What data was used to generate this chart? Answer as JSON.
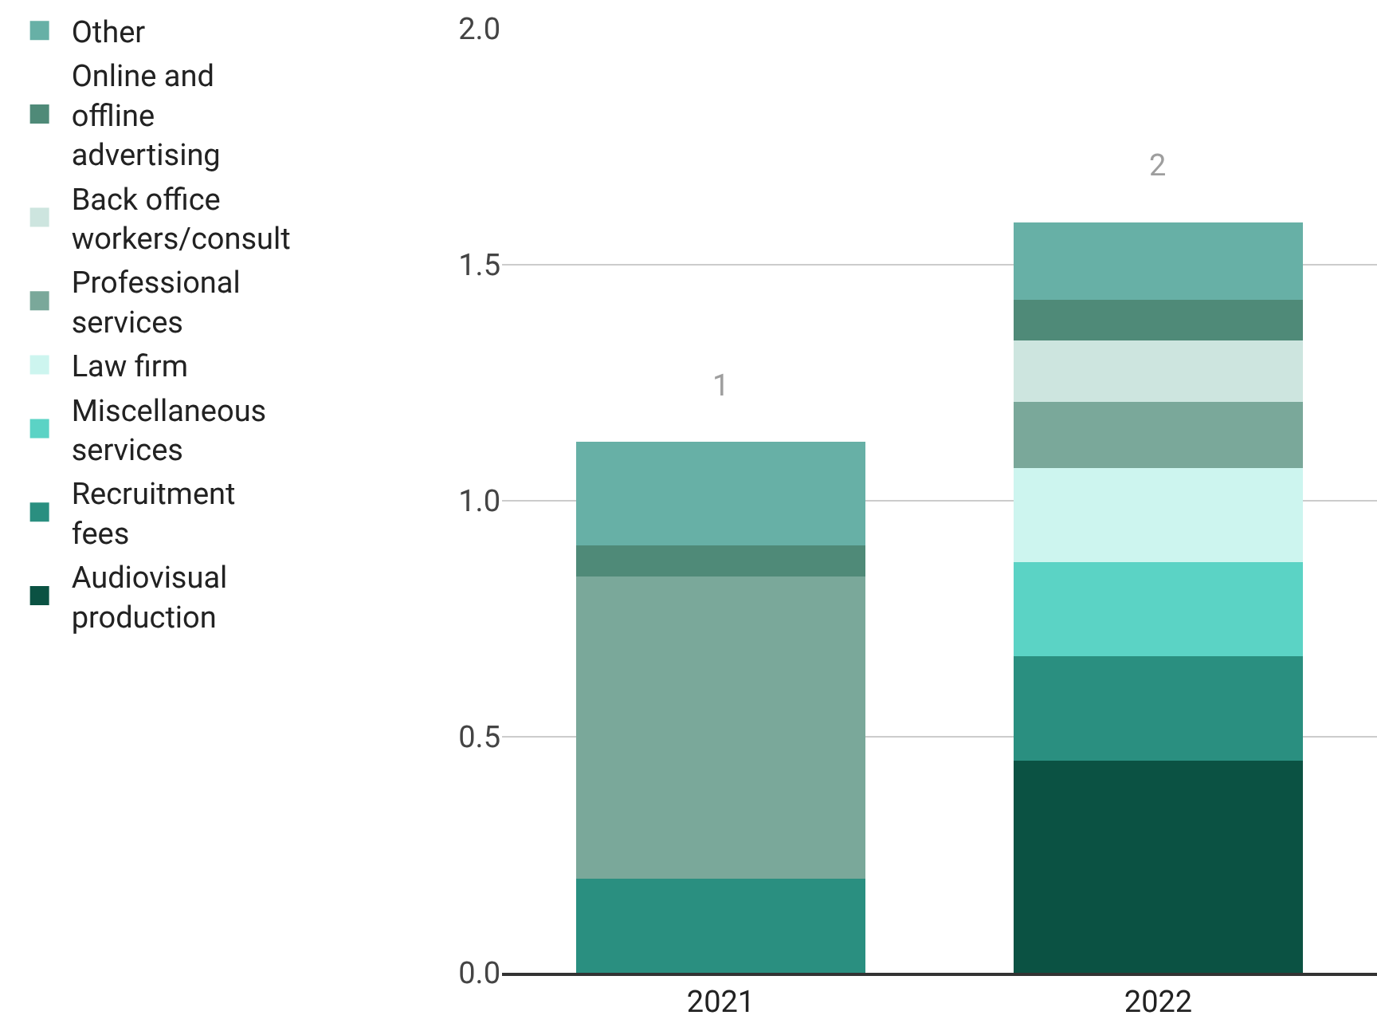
{
  "chart_data": {
    "type": "bar",
    "stacked": true,
    "categories": [
      "2021",
      "2022"
    ],
    "series": [
      {
        "name": "Audiovisual production",
        "color": "#0b5243",
        "values": [
          0,
          0.45
        ]
      },
      {
        "name": "Recruitment fees",
        "color": "#2a8f80",
        "values": [
          0.2,
          0.22
        ]
      },
      {
        "name": "Miscellaneous services",
        "color": "#5bd3c5",
        "values": [
          0,
          0.2
        ]
      },
      {
        "name": "Law firm",
        "color": "#cdf5ef",
        "values": [
          0,
          0.2
        ]
      },
      {
        "name": "Professional services",
        "color": "#7aa89a",
        "values": [
          0.64,
          0.14
        ]
      },
      {
        "name": "Back office workers/consult",
        "color": "#cde5df",
        "values": [
          0,
          0.13
        ]
      },
      {
        "name": "Online and offline advertising",
        "color": "#4f8a78",
        "values": [
          0.065,
          0.085
        ]
      },
      {
        "name": "Other",
        "color": "#67b0a6",
        "values": [
          0.22,
          0.165
        ]
      }
    ],
    "totals": [
      "1",
      "2"
    ],
    "ylim": [
      0,
      2.0
    ],
    "yticks": [
      {
        "value": 0,
        "label": "0.0"
      },
      {
        "value": 0.5,
        "label": "0.5"
      },
      {
        "value": 1.0,
        "label": "1.0"
      },
      {
        "value": 1.5,
        "label": "1.5"
      },
      {
        "value": 2.0,
        "label": "2.0"
      }
    ],
    "grid": "y",
    "legend": "left"
  }
}
